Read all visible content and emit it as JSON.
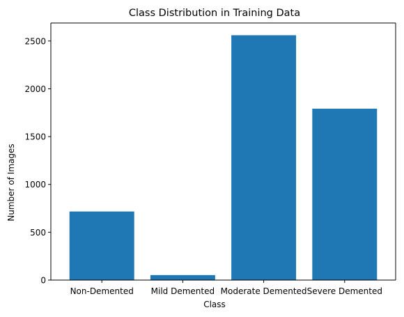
{
  "chart_data": {
    "type": "bar",
    "title": "Class Distribution in Training Data",
    "xlabel": "Class",
    "ylabel": "Number of Images",
    "categories": [
      "Non-Demented",
      "Mild Demented",
      "Moderate Demented",
      "Severe Demented"
    ],
    "values": [
      717,
      52,
      2560,
      1792
    ],
    "ylim": [
      0,
      2688
    ],
    "yticks": [
      "0",
      "500",
      "1000",
      "1500",
      "2000",
      "2500"
    ],
    "bar_color": "#1f77b4",
    "grid": false,
    "legend": "none"
  }
}
